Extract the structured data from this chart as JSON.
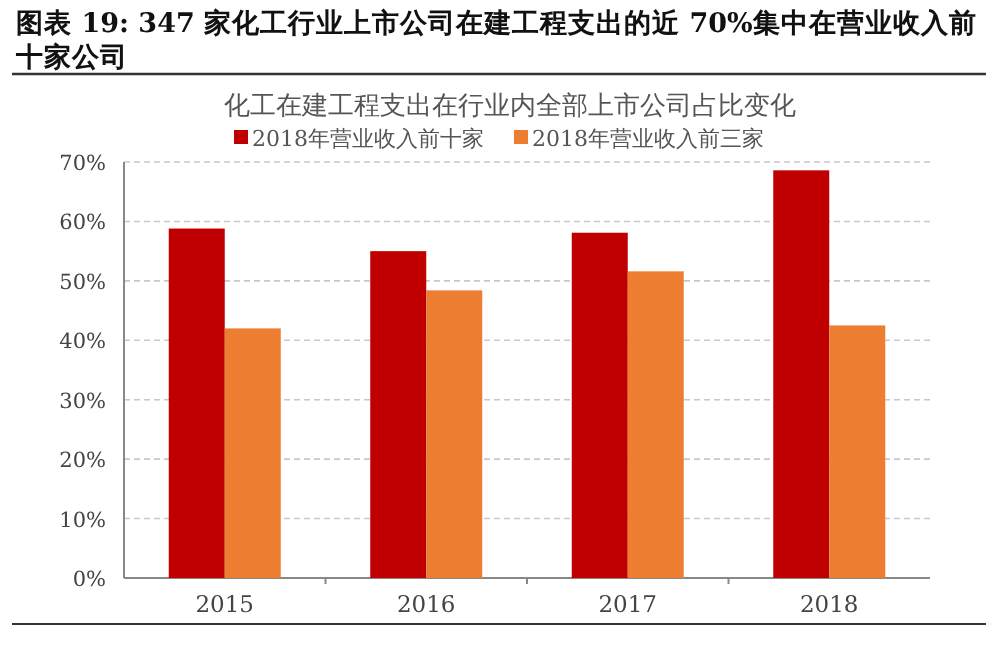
{
  "chart_data": {
    "type": "bar",
    "title": "图表 19: 347 家化工行业上市公司在建工程支出的近 70%集中在营业收入前十家公司",
    "subtitle": "化工在建工程支出在行业内全部上市公司占比变化",
    "categories": [
      "2015",
      "2016",
      "2017",
      "2018"
    ],
    "series": [
      {
        "name": "2018年营业收入前十家",
        "color": "#c00000",
        "values": [
          58.8,
          55.0,
          58.1,
          68.6
        ]
      },
      {
        "name": "2018年营业收入前三家",
        "color": "#ed7d31",
        "values": [
          42,
          48.4,
          51.6,
          42.5
        ]
      }
    ],
    "ylim": [
      0,
      70
    ],
    "yticks": [
      {
        "value": 0,
        "label": "0%"
      },
      {
        "value": 10,
        "label": "10%"
      },
      {
        "value": 20,
        "label": "20%"
      },
      {
        "value": 30,
        "label": "30%"
      },
      {
        "value": 40,
        "label": "40%"
      },
      {
        "value": 50,
        "label": "50%"
      },
      {
        "value": 60,
        "label": "60%"
      },
      {
        "value": 70,
        "label": "70%"
      }
    ],
    "grid": "y",
    "legend": "top"
  }
}
